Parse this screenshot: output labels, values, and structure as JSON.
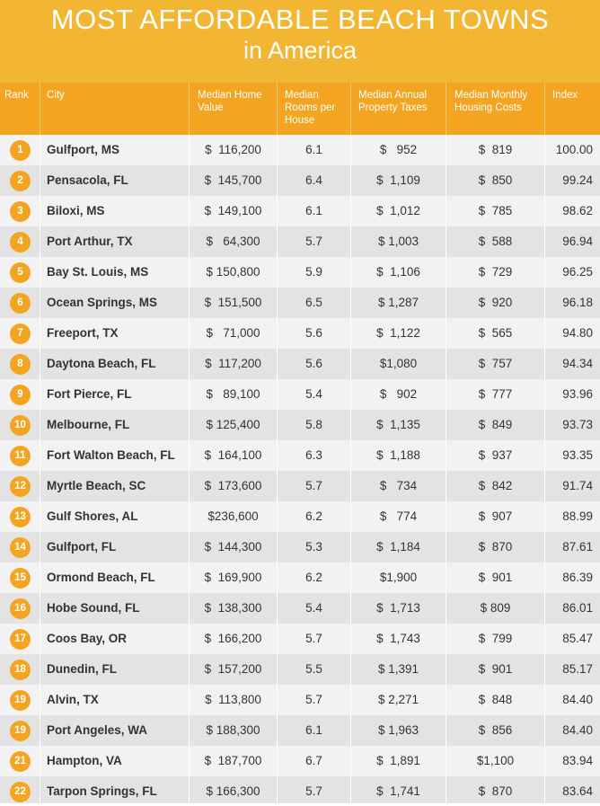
{
  "header": {
    "title_line1": "MOST AFFORDABLE BEACH TOWNS",
    "title_line2": "in America"
  },
  "chart_data": {
    "type": "table",
    "title": "MOST AFFORDABLE BEACH TOWNS in America",
    "columns": [
      "Rank",
      "City",
      "Median Home Value",
      "Median Rooms per House",
      "Median Annual Property Taxes",
      "Median Monthly Housing Costs",
      "Index"
    ],
    "rows": [
      {
        "rank": "1",
        "city": "Gulfport, MS",
        "home_value": "$  116,200",
        "rooms": "6.1",
        "taxes": "$   952",
        "housing": "$  819",
        "index": "100.00"
      },
      {
        "rank": "2",
        "city": "Pensacola, FL",
        "home_value": "$  145,700",
        "rooms": "6.4",
        "taxes": "$  1,109",
        "housing": "$  850",
        "index": "99.24"
      },
      {
        "rank": "3",
        "city": "Biloxi, MS",
        "home_value": "$  149,100",
        "rooms": "6.1",
        "taxes": "$  1,012",
        "housing": "$  785",
        "index": "98.62"
      },
      {
        "rank": "4",
        "city": "Port Arthur, TX",
        "home_value": "$   64,300",
        "rooms": "5.7",
        "taxes": "$ 1,003",
        "housing": "$  588",
        "index": "96.94"
      },
      {
        "rank": "5",
        "city": "Bay St. Louis, MS",
        "home_value": "$ 150,800",
        "rooms": "5.9",
        "taxes": "$  1,106",
        "housing": "$  729",
        "index": "96.25"
      },
      {
        "rank": "6",
        "city": "Ocean Springs, MS",
        "home_value": "$  151,500",
        "rooms": "6.5",
        "taxes": "$ 1,287",
        "housing": "$  920",
        "index": "96.18"
      },
      {
        "rank": "7",
        "city": "Freeport, TX",
        "home_value": "$   71,000",
        "rooms": "5.6",
        "taxes": "$  1,122",
        "housing": "$  565",
        "index": "94.80"
      },
      {
        "rank": "8",
        "city": "Daytona Beach, FL",
        "home_value": "$  117,200",
        "rooms": "5.6",
        "taxes": "$1,080",
        "housing": "$  757",
        "index": "94.34"
      },
      {
        "rank": "9",
        "city": "Fort Pierce, FL",
        "home_value": "$   89,100",
        "rooms": "5.4",
        "taxes": "$   902",
        "housing": "$  777",
        "index": "93.96"
      },
      {
        "rank": "10",
        "city": "Melbourne, FL",
        "home_value": "$ 125,400",
        "rooms": "5.8",
        "taxes": "$  1,135",
        "housing": "$  849",
        "index": "93.73"
      },
      {
        "rank": "11",
        "city": "Fort Walton Beach, FL",
        "home_value": "$  164,100",
        "rooms": "6.3",
        "taxes": "$  1,188",
        "housing": "$  937",
        "index": "93.35"
      },
      {
        "rank": "12",
        "city": "Myrtle Beach, SC",
        "home_value": "$  173,600",
        "rooms": "5.7",
        "taxes": "$   734",
        "housing": "$  842",
        "index": "91.74"
      },
      {
        "rank": "13",
        "city": "Gulf Shores, AL",
        "home_value": "$236,600",
        "rooms": "6.2",
        "taxes": "$   774",
        "housing": "$  907",
        "index": "88.99"
      },
      {
        "rank": "14",
        "city": "Gulfport, FL",
        "home_value": "$  144,300",
        "rooms": "5.3",
        "taxes": "$  1,184",
        "housing": "$  870",
        "index": "87.61"
      },
      {
        "rank": "15",
        "city": "Ormond Beach, FL",
        "home_value": "$  169,900",
        "rooms": "6.2",
        "taxes": "$1,900",
        "housing": "$  901",
        "index": "86.39"
      },
      {
        "rank": "16",
        "city": "Hobe Sound, FL",
        "home_value": "$  138,300",
        "rooms": "5.4",
        "taxes": "$  1,713",
        "housing": "$ 809",
        "index": "86.01"
      },
      {
        "rank": "17",
        "city": "Coos Bay, OR",
        "home_value": "$  166,200",
        "rooms": "5.7",
        "taxes": "$  1,743",
        "housing": "$  799",
        "index": "85.47"
      },
      {
        "rank": "18",
        "city": "Dunedin, FL",
        "home_value": "$  157,200",
        "rooms": "5.5",
        "taxes": "$ 1,391",
        "housing": "$  901",
        "index": "85.17"
      },
      {
        "rank": "19",
        "city": "Alvin, TX",
        "home_value": "$  113,800",
        "rooms": "5.7",
        "taxes": "$ 2,271",
        "housing": "$  848",
        "index": "84.40"
      },
      {
        "rank": "19",
        "city": "Port Angeles, WA",
        "home_value": "$ 188,300",
        "rooms": "6.1",
        "taxes": "$ 1,963",
        "housing": "$  856",
        "index": "84.40"
      },
      {
        "rank": "21",
        "city": "Hampton, VA",
        "home_value": "$  187,700",
        "rooms": "6.7",
        "taxes": "$  1,891",
        "housing": "$1,100",
        "index": "83.94"
      },
      {
        "rank": "22",
        "city": "Tarpon Springs, FL",
        "home_value": "$ 166,300",
        "rooms": "5.7",
        "taxes": "$  1,741",
        "housing": "$  870",
        "index": "83.64"
      }
    ]
  },
  "colors": {
    "header_bg": "#f3b632",
    "column_header_bg": "#f3a521",
    "badge": "#f3a521",
    "row_light": "#f2f2f2",
    "row_dark": "#e3e3e3"
  }
}
